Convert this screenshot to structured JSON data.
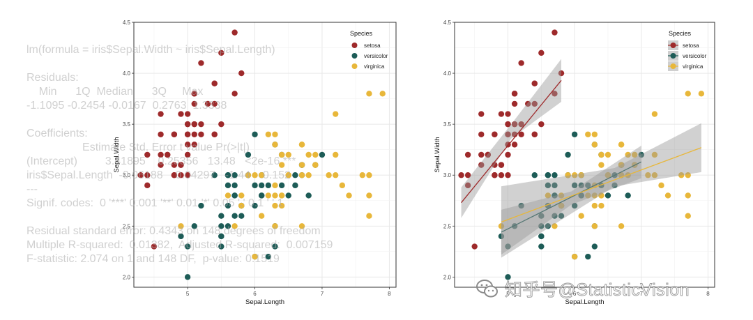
{
  "chart_data": [
    {
      "type": "scatter",
      "xlabel": "Sepal.Length",
      "ylabel": "Sepal.Width",
      "xlim": [
        4.2,
        8.1
      ],
      "ylim": [
        1.9,
        4.5
      ],
      "xticks": [
        "5",
        "6",
        "7",
        "8"
      ],
      "yticks": [
        "2.0",
        "2.5",
        "3.0",
        "3.5",
        "4.0",
        "4.5"
      ],
      "grid": true,
      "legend": {
        "title": "Species",
        "position": "top-right",
        "entries": [
          "setosa",
          "versicolor",
          "virginica"
        ]
      },
      "regression_lines": false,
      "series": [
        {
          "name": "setosa",
          "color": "#9e2a2b",
          "x": [
            5.1,
            4.9,
            4.7,
            4.6,
            5.0,
            5.4,
            4.6,
            5.0,
            4.4,
            4.9,
            5.4,
            4.8,
            4.8,
            4.3,
            5.8,
            5.7,
            5.4,
            5.1,
            5.7,
            5.1,
            5.4,
            5.1,
            4.6,
            5.1,
            4.8,
            5.0,
            5.0,
            5.2,
            5.2,
            4.7,
            4.8,
            5.4,
            5.2,
            5.5,
            4.9,
            5.0,
            5.5,
            4.9,
            4.4,
            5.1,
            5.0,
            4.5,
            4.4,
            5.0,
            5.1,
            4.8,
            5.1,
            4.6,
            5.3,
            5.0
          ],
          "y": [
            3.5,
            3.0,
            3.2,
            3.1,
            3.6,
            3.9,
            3.4,
            3.4,
            2.9,
            3.1,
            3.7,
            3.4,
            3.0,
            3.0,
            4.0,
            4.4,
            3.9,
            3.5,
            3.8,
            3.8,
            3.4,
            3.7,
            3.6,
            3.3,
            3.4,
            3.0,
            3.4,
            3.5,
            3.4,
            3.2,
            3.1,
            3.4,
            4.1,
            4.2,
            3.1,
            3.2,
            3.5,
            3.6,
            3.0,
            3.4,
            3.5,
            2.3,
            3.2,
            3.5,
            3.8,
            3.0,
            3.8,
            3.2,
            3.7,
            3.3
          ]
        },
        {
          "name": "versicolor",
          "color": "#1d5c57",
          "x": [
            7.0,
            6.4,
            6.9,
            5.5,
            6.5,
            5.7,
            6.3,
            4.9,
            6.6,
            5.2,
            5.0,
            5.9,
            6.0,
            6.1,
            5.6,
            6.7,
            5.6,
            5.8,
            6.2,
            5.6,
            5.9,
            6.1,
            6.3,
            6.1,
            6.4,
            6.6,
            6.8,
            6.7,
            6.0,
            5.7,
            5.5,
            5.5,
            5.8,
            6.0,
            5.4,
            6.0,
            6.7,
            6.3,
            5.6,
            5.5,
            5.5,
            6.1,
            5.8,
            5.0,
            5.6,
            5.7,
            5.7,
            6.2,
            5.1,
            5.7
          ],
          "y": [
            3.2,
            3.2,
            3.1,
            2.3,
            2.8,
            2.8,
            3.3,
            2.4,
            2.9,
            2.7,
            2.0,
            3.0,
            2.2,
            2.9,
            2.9,
            3.1,
            3.0,
            2.7,
            2.2,
            2.5,
            3.2,
            2.8,
            2.5,
            2.8,
            2.9,
            3.0,
            2.8,
            3.0,
            2.9,
            2.6,
            2.4,
            2.4,
            2.7,
            2.7,
            3.0,
            3.4,
            3.1,
            2.3,
            3.0,
            2.5,
            2.6,
            3.0,
            2.6,
            2.3,
            2.7,
            3.0,
            2.9,
            2.9,
            2.5,
            2.8
          ]
        },
        {
          "name": "virginica",
          "color": "#e8b73a",
          "x": [
            6.3,
            5.8,
            7.1,
            6.3,
            6.5,
            7.6,
            4.9,
            7.3,
            6.7,
            7.2,
            6.5,
            6.4,
            6.8,
            5.7,
            5.8,
            6.4,
            6.5,
            7.7,
            7.7,
            6.0,
            6.9,
            5.6,
            7.7,
            6.3,
            6.7,
            7.2,
            6.2,
            6.1,
            6.4,
            7.2,
            7.4,
            7.9,
            6.4,
            6.3,
            6.1,
            7.7,
            6.3,
            6.4,
            6.0,
            6.9,
            6.7,
            6.9,
            5.8,
            6.8,
            6.7,
            6.7,
            6.3,
            6.5,
            6.2,
            5.9
          ],
          "y": [
            3.3,
            2.7,
            3.0,
            2.9,
            3.0,
            3.0,
            2.5,
            2.9,
            2.5,
            3.6,
            3.2,
            2.7,
            3.0,
            2.5,
            2.8,
            3.2,
            3.0,
            3.8,
            2.6,
            2.2,
            3.2,
            2.8,
            2.8,
            2.7,
            3.3,
            3.2,
            2.8,
            3.0,
            2.8,
            3.0,
            2.8,
            3.8,
            2.8,
            2.8,
            2.6,
            3.0,
            3.4,
            3.1,
            3.0,
            3.1,
            3.1,
            3.1,
            2.7,
            3.2,
            3.3,
            3.0,
            2.5,
            3.0,
            3.4,
            3.0
          ]
        }
      ]
    },
    {
      "type": "scatter",
      "xlabel": "Sepal.Length",
      "ylabel": "Sepal.Width",
      "xlim": [
        4.2,
        8.1
      ],
      "ylim": [
        1.9,
        4.5
      ],
      "xticks": [
        "5",
        "6",
        "7",
        "8"
      ],
      "yticks": [
        "2.0",
        "2.5",
        "3.0",
        "3.5",
        "4.0",
        "4.5"
      ],
      "grid": true,
      "legend": {
        "title": "Species",
        "position": "top-right",
        "entries": [
          "setosa",
          "versicolor",
          "virginica"
        ]
      },
      "regression_lines": true,
      "fits": [
        {
          "series": "setosa",
          "x": [
            4.3,
            5.8
          ],
          "y": [
            2.73,
            3.93
          ],
          "band_x": [
            4.3,
            5.05,
            5.8
          ],
          "band_low": [
            2.58,
            3.36,
            3.72
          ],
          "band_high": [
            2.88,
            3.5,
            4.14
          ]
        },
        {
          "series": "versicolor",
          "x": [
            4.9,
            7.0
          ],
          "y": [
            2.44,
            3.13
          ],
          "band_x": [
            4.9,
            5.95,
            7.0
          ],
          "band_low": [
            2.22,
            2.71,
            2.97
          ],
          "band_high": [
            2.66,
            2.84,
            3.29
          ]
        },
        {
          "series": "virginica",
          "x": [
            4.9,
            7.9
          ],
          "y": [
            2.54,
            3.27
          ],
          "band_x": [
            4.9,
            6.6,
            7.9
          ],
          "band_low": [
            2.19,
            2.89,
            3.03
          ],
          "band_high": [
            2.89,
            3.07,
            3.51
          ]
        }
      ]
    }
  ],
  "overlay_text": "lm(formula = iris$Sepal.Width ~ iris$Sepal.Length)\n\nResiduals:\n    Min      1Q  Median      3Q     Max\n-1.1095 -0.2454 -0.0167  0.2763  1.3338\n\nCoefficients:\n                  Estimate Std. Error t value Pr(>|t|)\n(Intercept)         3.41895    0.25356   13.48   <2e-16 ***\niris$Sepal.Length  -0.06188    0.04297   -1.44    0.152\n---\nSignif. codes:  0 '***' 0.001 '**' 0.01 '*' 0.05 '.' 0.1 ' ' 1\n\nResidual standard error: 0.4343 on 148 degrees of freedom\nMultiple R-squared:  0.01382,  Adjusted R-squared:  0.007159\nF-statistic: 2.074 on 1 and 148 DF,  p-value: 0.1519",
  "watermark": "知乎号@StatisticVision"
}
